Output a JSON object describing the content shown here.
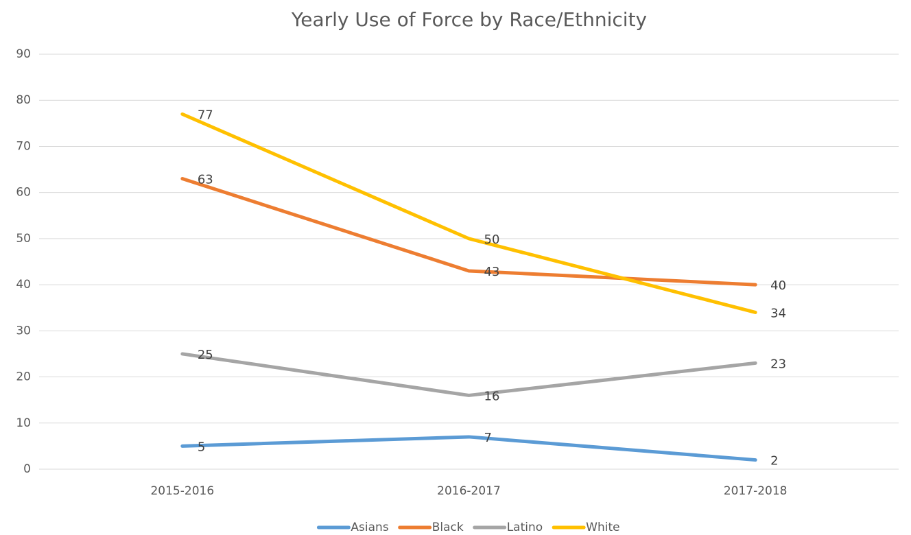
{
  "chart_data": {
    "type": "line",
    "title": "Yearly Use of Force by Race/Ethnicity",
    "categories": [
      "2015-2016",
      "2016-2017",
      "2017-2018"
    ],
    "series": [
      {
        "name": "Asians",
        "color": "#5b9bd5",
        "values": [
          5,
          7,
          2
        ]
      },
      {
        "name": "Black",
        "color": "#ed7d31",
        "values": [
          63,
          43,
          40
        ]
      },
      {
        "name": "Latino",
        "color": "#a5a5a5",
        "values": [
          25,
          16,
          23
        ]
      },
      {
        "name": "White",
        "color": "#ffc000",
        "values": [
          77,
          50,
          34
        ]
      }
    ],
    "ylim": [
      0,
      90
    ],
    "yticks": [
      0,
      10,
      20,
      30,
      40,
      50,
      60,
      70,
      80,
      90
    ],
    "grid": true,
    "legend": "bottom"
  }
}
